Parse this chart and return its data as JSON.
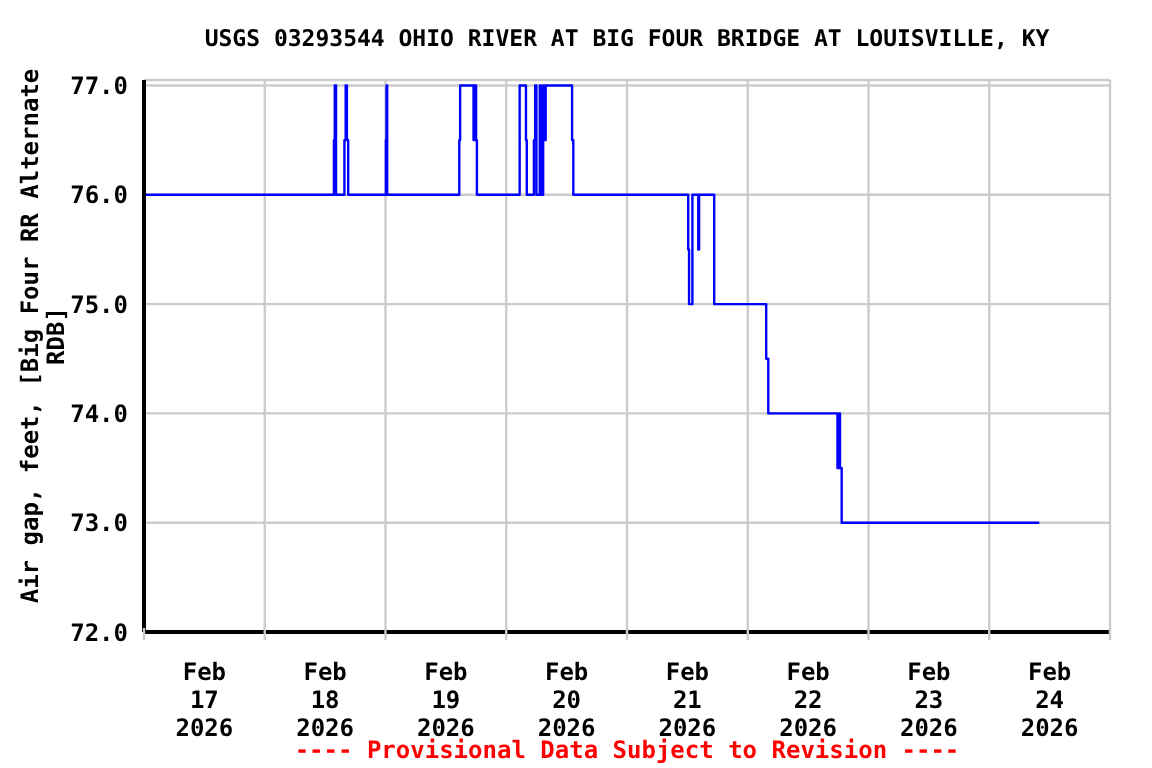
{
  "chart_data": {
    "type": "step",
    "title": "USGS 03293544 OHIO RIVER AT BIG FOUR BRIDGE AT LOUISVILLE, KY",
    "ylabel": "Air gap, feet, [Big Four RR Alternate RDB]",
    "annotations": [
      "---- Provisional Data Subject to Revision ----"
    ],
    "x": [
      "2026-02-17T00:00",
      "2026-02-18T13:45",
      "2026-02-18T13:55",
      "2026-02-18T14:10",
      "2026-02-18T15:50",
      "2026-02-18T16:05",
      "2026-02-18T16:20",
      "2026-02-18T16:35",
      "2026-02-19T00:05",
      "2026-02-19T00:12",
      "2026-02-19T00:20",
      "2026-02-19T14:40",
      "2026-02-19T14:50",
      "2026-02-19T17:30",
      "2026-02-19T17:45",
      "2026-02-19T18:00",
      "2026-02-19T18:10",
      "2026-02-20T02:40",
      "2026-02-20T03:55",
      "2026-02-20T04:05",
      "2026-02-20T05:30",
      "2026-02-20T05:45",
      "2026-02-20T06:00",
      "2026-02-20T06:40",
      "2026-02-20T06:55",
      "2026-02-20T07:20",
      "2026-02-20T07:35",
      "2026-02-20T07:50",
      "2026-02-20T13:05",
      "2026-02-20T13:20",
      "2026-02-21T12:10",
      "2026-02-21T12:20",
      "2026-02-21T13:00",
      "2026-02-21T14:10",
      "2026-02-21T14:20",
      "2026-02-21T17:20",
      "2026-02-22T03:40",
      "2026-02-22T04:05",
      "2026-02-22T17:50",
      "2026-02-22T18:10",
      "2026-02-22T18:20",
      "2026-02-22T18:40",
      "2026-02-24T09:45"
    ],
    "series": [
      {
        "color": "#0000ff",
        "values": [
          76,
          76.5,
          77,
          76,
          76.5,
          77,
          76.5,
          76,
          76.5,
          77,
          76,
          76.5,
          77,
          76.5,
          77,
          76.5,
          76,
          77,
          76.5,
          76,
          76.5,
          77,
          76,
          77,
          76,
          77,
          76.5,
          77,
          76.5,
          76,
          75.5,
          75,
          76,
          75.5,
          76,
          75,
          74.5,
          74,
          73.5,
          74,
          73.5,
          73,
          73
        ]
      }
    ],
    "xlim": [
      "2026-02-17T00:00",
      "2026-02-25T00:00"
    ],
    "xticks": [
      {
        "value": "2026-02-17T00:00",
        "label": null
      },
      {
        "value": "2026-02-17T12:00",
        "label": "Feb\n17\n2026"
      },
      {
        "value": "2026-02-18T00:00",
        "label": null
      },
      {
        "value": "2026-02-18T12:00",
        "label": "Feb\n18\n2026"
      },
      {
        "value": "2026-02-19T00:00",
        "label": null
      },
      {
        "value": "2026-02-19T12:00",
        "label": "Feb\n19\n2026"
      },
      {
        "value": "2026-02-20T00:00",
        "label": null
      },
      {
        "value": "2026-02-20T12:00",
        "label": "Feb\n20\n2026"
      },
      {
        "value": "2026-02-21T00:00",
        "label": null
      },
      {
        "value": "2026-02-21T12:00",
        "label": "Feb\n21\n2026"
      },
      {
        "value": "2026-02-22T00:00",
        "label": null
      },
      {
        "value": "2026-02-22T12:00",
        "label": "Feb\n22\n2026"
      },
      {
        "value": "2026-02-23T00:00",
        "label": null
      },
      {
        "value": "2026-02-23T12:00",
        "label": "Feb\n23\n2026"
      },
      {
        "value": "2026-02-24T00:00",
        "label": null
      },
      {
        "value": "2026-02-24T12:00",
        "label": "Feb\n24\n2026"
      },
      {
        "value": "2026-02-25T00:00",
        "label": null
      }
    ],
    "ylim": [
      72,
      77.05
    ],
    "yticks": [
      {
        "value": 72,
        "label": "72.0"
      },
      {
        "value": 73,
        "label": "73.0"
      },
      {
        "value": 74,
        "label": "74.0"
      },
      {
        "value": 75,
        "label": "75.0"
      },
      {
        "value": 76,
        "label": "76.0"
      },
      {
        "value": 77,
        "label": "77.0"
      }
    ],
    "grid": true,
    "legend": false
  }
}
